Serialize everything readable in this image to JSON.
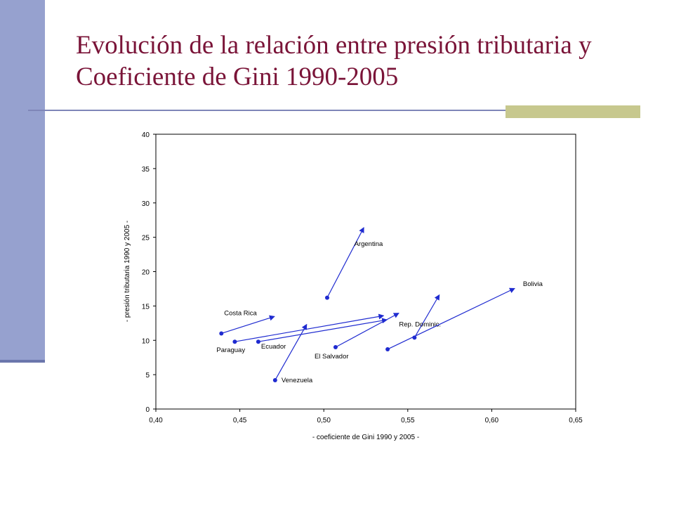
{
  "slide": {
    "title": "Evolución de la relación entre presión tributaria y Coeficiente de Gini 1990-2005"
  },
  "colors": {
    "title": "#7a1438",
    "sidebar": "#96a1cf",
    "rule": "#7f86b8",
    "accent": "#c7c88e",
    "series": "#1f2bd0"
  },
  "chart_data": {
    "type": "scatter",
    "title": "",
    "xlabel": "- coeficiente de Gini 1990 y 2005 -",
    "ylabel": "- presión tributaria 1990 y 2005 -",
    "xlim": [
      0.4,
      0.65
    ],
    "ylim": [
      0,
      40
    ],
    "x_ticks": [
      0.4,
      0.45,
      0.5,
      0.55,
      0.6,
      0.65
    ],
    "x_tick_labels": [
      "0,40",
      "0,45",
      "0,50",
      "0,55",
      "0,60",
      "0,65"
    ],
    "y_ticks": [
      0,
      5,
      10,
      15,
      20,
      25,
      30,
      35,
      40
    ],
    "y_tick_labels": [
      "0",
      "5",
      "10",
      "15",
      "20",
      "25",
      "30",
      "35",
      "40"
    ],
    "grid": false,
    "legend": "none",
    "countries": [
      {
        "label": "Argentina",
        "x1990": 0.502,
        "y1990": 16.2,
        "x2005": 0.524,
        "y2005": 26.5
      },
      {
        "label": "Costa Rica",
        "x1990": 0.439,
        "y1990": 11.0,
        "x2005": 0.471,
        "y2005": 13.5
      },
      {
        "label": "Paraguay",
        "x1990": 0.447,
        "y1990": 9.8,
        "x2005": 0.536,
        "y2005": 13.6
      },
      {
        "label": "Ecuador",
        "x1990": 0.461,
        "y1990": 9.8,
        "x2005": 0.538,
        "y2005": 13.0
      },
      {
        "label": "Venezuela",
        "x1990": 0.471,
        "y1990": 4.2,
        "x2005": 0.49,
        "y2005": 12.4
      },
      {
        "label": "El Salvador",
        "x1990": 0.507,
        "y1990": 9.0,
        "x2005": 0.545,
        "y2005": 14.0
      },
      {
        "label": "Rep. Dominic.",
        "x1990": 0.554,
        "y1990": 10.4,
        "x2005": 0.569,
        "y2005": 16.7
      },
      {
        "label": "Bolivia",
        "x1990": 0.538,
        "y1990": 8.7,
        "x2005": 0.614,
        "y2005": 17.6
      }
    ]
  }
}
